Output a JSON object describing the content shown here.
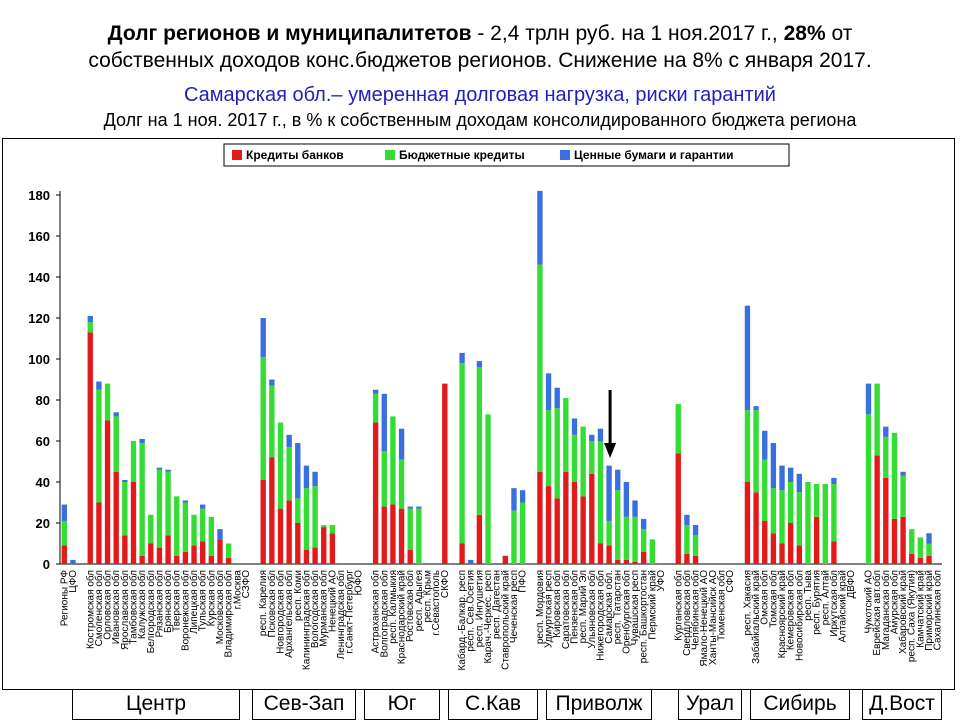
{
  "header": {
    "line1_bold": "Долг регионов и муниципалитетов",
    "line1_rest": " - 2,4 трлн руб. на 1 ноя.2017 г., ",
    "line1_bold2": "28%",
    "line1_end": " от",
    "line2": "собственных доходов конс.бюджетов регионов. Снижение на 8% с января 2017.",
    "line3": "Самарская обл.– умеренная долговая нагрузка, риски гарантий",
    "line4": "Долг на 1 ноя. 2017 г., в % к собственным доходам консолидированного бюджета региона"
  },
  "colors": {
    "banks": "#e31a1a",
    "budget": "#33dd33",
    "securities": "#3a6fe0"
  },
  "chart_data": {
    "type": "bar",
    "stacked": true,
    "ylim": [
      0,
      180
    ],
    "yticks": [
      0,
      20,
      40,
      60,
      80,
      100,
      120,
      140,
      160,
      180
    ],
    "legend_position": "top",
    "legend": [
      "Кредиты банков",
      "Бюджетные кредиты",
      "Ценные бумаги и гарантии"
    ],
    "arrow_marks_category": "Самарская обл.",
    "categories": [
      "Регионы РФ",
      "ЦФО",
      "",
      "Костромская обл",
      "Смоленская обл",
      "Орловская обл",
      "Ивановская обл",
      "Ярославская обл",
      "Тамбовская обл",
      "Калужская обл",
      "Белгородская обл",
      "Рязанская обл",
      "Брянская обл",
      "Тверская обл",
      "Воронежская обл",
      "Липецкая обл",
      "Тульская обл",
      "Курская обл",
      "Московская обл",
      "Владимирская обл",
      "г.Москва",
      "СЗФО",
      "",
      "респ. Карелия",
      "Псковская обл",
      "Новгородская обл",
      "Архангельская обл",
      "респ. Коми",
      "Калининградская обл",
      "Вологодская обл",
      "Мурманская обл",
      "Ненецкий АО",
      "Ленинградская обл",
      "г.Санкт-Петербург",
      "ЮФО",
      "",
      "Астраханская обл",
      "Волгоградская обл",
      "респ. Калмыкия",
      "Краснодарский край",
      "Ростовская обл",
      "респ. Адыгея",
      "респ. Крым",
      "г.Севастополь",
      "СКФО",
      "",
      "Кабард.-Балкар. респ",
      "респ. Сев.Осетия",
      "респ. Ингушетия",
      "Карач.-Черкес. респ",
      "респ. Дагестан",
      "Ставропольский край",
      "Чеченская респ",
      "ПФО",
      "",
      "респ. Мордовия",
      "Удмуртская респ",
      "Кировская обл",
      "Саратовская обл",
      "Пензенская обл",
      "респ. Марий Эл",
      "Ульяновская обл",
      "Нижегородская обл",
      "Самарская обл.",
      "респ. Татарстан",
      "Оренбургская обл",
      "Чувашская респ",
      "респ. Башкортостан",
      "Пермский край",
      "УФО",
      "",
      "Курганская обл",
      "Свердловская обл",
      "Челябинская обл",
      "Ямало-Ненецкий АО",
      "Ханты-Мансийск АО",
      "Тюменская обл",
      "СФО",
      "",
      "респ. Хакасия",
      "Забайкальский край",
      "Омская обл",
      "Томская обл",
      "Красноярский край",
      "Кемеровская обл",
      "Новосибирская обл",
      "респ. Тыва",
      "респ. Бурятия",
      "респ. Алтай",
      "Иркутская обл",
      "Алтайский край",
      "ДВФО",
      "",
      "Чукотский АО",
      "Еврейская авт.обл",
      "Магаданская обл",
      "Амурская обл",
      "Хабаровский край",
      "респ. Саха (Якутия)",
      "Камчатский край",
      "Приморский край",
      "Сахалинская обл"
    ],
    "series": [
      {
        "name": "Кредиты банков",
        "values": [
          9,
          0,
          0,
          113,
          30,
          70,
          45,
          14,
          40,
          4,
          10,
          8,
          14,
          4,
          6,
          9,
          11,
          4,
          12,
          3,
          0,
          0,
          0,
          41,
          52,
          27,
          31,
          20,
          7,
          8,
          18,
          15,
          0,
          0,
          0,
          0,
          69,
          28,
          29,
          27,
          7,
          0,
          0,
          0,
          88,
          0,
          10,
          0,
          24,
          0,
          0,
          4,
          0,
          0,
          0,
          45,
          38,
          32,
          45,
          40,
          33,
          44,
          10,
          9,
          2,
          2,
          1,
          6,
          0,
          0,
          0,
          54,
          5,
          4,
          0,
          0,
          0,
          0,
          0,
          40,
          35,
          21,
          15,
          10,
          20,
          9,
          0,
          23,
          0,
          11,
          0,
          0,
          0,
          0,
          53,
          42,
          22,
          23,
          5,
          3,
          4,
          0
        ]
      },
      {
        "name": "Бюджетные кредиты",
        "values": [
          12,
          0,
          0,
          5,
          55,
          18,
          27,
          26,
          20,
          55,
          14,
          38,
          31,
          29,
          24,
          15,
          16,
          19,
          0,
          7,
          0,
          0,
          0,
          60,
          35,
          42,
          26,
          12,
          30,
          30,
          1,
          4,
          0,
          0,
          0,
          0,
          14,
          27,
          43,
          24,
          20,
          27,
          0,
          0,
          0,
          0,
          88,
          0,
          72,
          73,
          0,
          0,
          26,
          30,
          0,
          101,
          37,
          44,
          36,
          23,
          34,
          16,
          50,
          12,
          34,
          21,
          22,
          11,
          12,
          0,
          0,
          24,
          14,
          10,
          0,
          0,
          0,
          0,
          0,
          35,
          40,
          30,
          22,
          26,
          20,
          26,
          40,
          16,
          39,
          28,
          0,
          0,
          0,
          73,
          35,
          20,
          42,
          20,
          12,
          10,
          6,
          0
        ]
      },
      {
        "name": "Ценные бумаги и гарантии",
        "values": [
          8,
          2,
          0,
          3,
          4,
          0,
          2,
          1,
          0,
          2,
          0,
          1,
          1,
          0,
          1,
          0,
          2,
          0,
          5,
          0,
          0,
          0,
          0,
          19,
          3,
          0,
          6,
          27,
          11,
          7,
          0,
          0,
          0,
          0,
          0,
          0,
          2,
          28,
          0,
          15,
          1,
          1,
          0,
          0,
          0,
          0,
          5,
          2,
          3,
          0,
          0,
          0,
          11,
          6,
          0,
          36,
          18,
          10,
          0,
          8,
          0,
          3,
          6,
          27,
          10,
          17,
          8,
          5,
          0,
          0,
          0,
          0,
          5,
          5,
          0,
          0,
          0,
          0,
          0,
          51,
          2,
          14,
          22,
          12,
          7,
          9,
          0,
          0,
          0,
          3,
          0,
          0,
          0,
          15,
          0,
          5,
          0,
          2,
          0,
          0,
          5,
          0
        ]
      }
    ]
  },
  "bottom_labels": [
    "Центр",
    "Сев-Зап",
    "Юг",
    "С.Кав",
    "Приволж",
    "Урал",
    "Сибирь",
    "Д.Вост"
  ]
}
